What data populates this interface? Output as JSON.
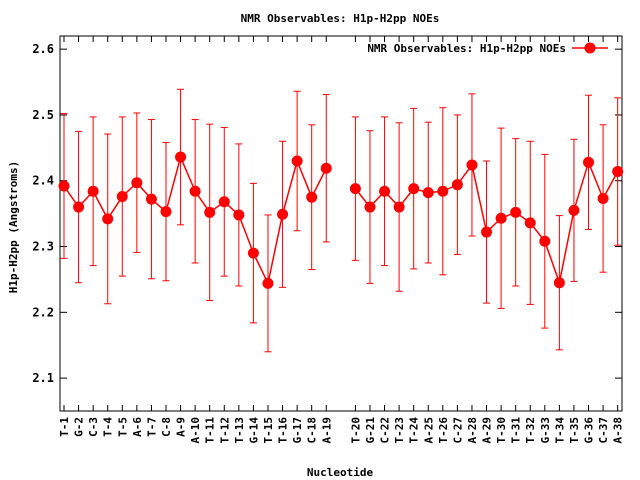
{
  "chart_data": {
    "type": "line",
    "title": "NMR Observables: H1p-H2pp NOEs",
    "xlabel": "Nucleotide",
    "ylabel": "H1p-H2pp (Angstroms)",
    "ylim": [
      2.05,
      2.62
    ],
    "yticks": [
      "2.1",
      "2.2",
      "2.3",
      "2.4",
      "2.5",
      "2.6"
    ],
    "ytick_values": [
      2.1,
      2.2,
      2.3,
      2.4,
      2.5,
      2.6
    ],
    "grid": false,
    "legend_position": "top-right",
    "series": [
      {
        "name": "NMR Observables: H1p-H2pp NOEs",
        "color": "#ff0000",
        "points": [
          {
            "label": "T-1",
            "y": 2.392,
            "err": 0.11
          },
          {
            "label": "G-2",
            "y": 2.36,
            "err": 0.115
          },
          {
            "label": "C-3",
            "y": 2.384,
            "err": 0.113
          },
          {
            "label": "T-4",
            "y": 2.342,
            "err": 0.129
          },
          {
            "label": "T-5",
            "y": 2.376,
            "err": 0.121
          },
          {
            "label": "A-6",
            "y": 2.397,
            "err": 0.106
          },
          {
            "label": "T-7",
            "y": 2.372,
            "err": 0.121
          },
          {
            "label": "C-8",
            "y": 2.353,
            "err": 0.105
          },
          {
            "label": "A-9",
            "y": 2.436,
            "err": 0.103
          },
          {
            "label": "A-10",
            "y": 2.384,
            "err": 0.109
          },
          {
            "label": "T-11",
            "y": 2.352,
            "err": 0.134
          },
          {
            "label": "T-12",
            "y": 2.368,
            "err": 0.113
          },
          {
            "label": "T-13",
            "y": 2.348,
            "err": 0.108
          },
          {
            "label": "G-14",
            "y": 2.29,
            "err": 0.106
          },
          {
            "label": "T-15",
            "y": 2.244,
            "err": 0.104
          },
          {
            "label": "T-16",
            "y": 2.349,
            "err": 0.111
          },
          {
            "label": "G-17",
            "y": 2.43,
            "err": 0.106
          },
          {
            "label": "C-18",
            "y": 2.375,
            "err": 0.11
          },
          {
            "label": "A-19",
            "y": 2.419,
            "err": 0.112
          },
          {
            "label": "",
            "y": null,
            "err": null
          },
          {
            "label": "T-20",
            "y": 2.388,
            "err": 0.109
          },
          {
            "label": "G-21",
            "y": 2.36,
            "err": 0.116
          },
          {
            "label": "C-22",
            "y": 2.384,
            "err": 0.113
          },
          {
            "label": "T-23",
            "y": 2.36,
            "err": 0.128
          },
          {
            "label": "T-24",
            "y": 2.388,
            "err": 0.122
          },
          {
            "label": "A-25",
            "y": 2.382,
            "err": 0.107
          },
          {
            "label": "T-26",
            "y": 2.384,
            "err": 0.127
          },
          {
            "label": "C-27",
            "y": 2.394,
            "err": 0.106
          },
          {
            "label": "A-28",
            "y": 2.424,
            "err": 0.108
          },
          {
            "label": "A-29",
            "y": 2.322,
            "err": 0.108
          },
          {
            "label": "T-30",
            "y": 2.343,
            "err": 0.137
          },
          {
            "label": "T-31",
            "y": 2.352,
            "err": 0.112
          },
          {
            "label": "T-32",
            "y": 2.336,
            "err": 0.124
          },
          {
            "label": "G-33",
            "y": 2.308,
            "err": 0.132
          },
          {
            "label": "T-34",
            "y": 2.245,
            "err": 0.102
          },
          {
            "label": "T-35",
            "y": 2.355,
            "err": 0.108
          },
          {
            "label": "G-36",
            "y": 2.428,
            "err": 0.102
          },
          {
            "label": "C-37",
            "y": 2.373,
            "err": 0.112
          },
          {
            "label": "A-38",
            "y": 2.414,
            "err": 0.112
          }
        ]
      }
    ]
  }
}
